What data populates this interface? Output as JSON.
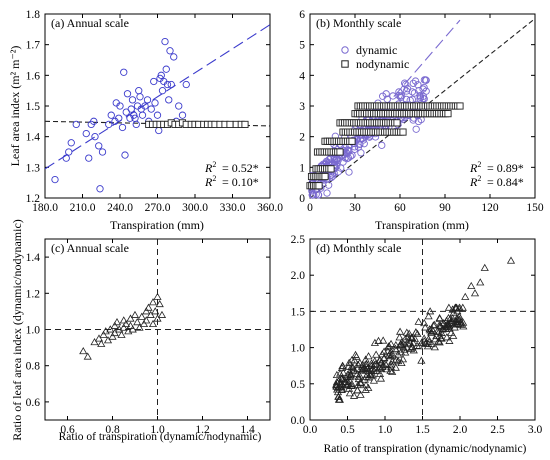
{
  "figure": {
    "left_ylabel_top": "Leaf area index (m² m⁻²)",
    "left_ylabel_bottom": "Ratio of leaf area index (dynamic/nodynamic)"
  },
  "chart_data": [
    {
      "type": "scatter",
      "title": "(a) Annual scale",
      "xlabel": "Transpiration (mm)",
      "ylabel": "Leaf area index (m² m⁻²)",
      "xlim": [
        180,
        360
      ],
      "ylim": [
        1.2,
        1.8
      ],
      "xticks": [
        180,
        210,
        240,
        270,
        300,
        330,
        360
      ],
      "yticks": [
        1.2,
        1.3,
        1.4,
        1.5,
        1.6,
        1.7,
        1.8
      ],
      "colors": {
        "dynamic": "#3b3bcc",
        "nodynamic": "#222222"
      },
      "series": [
        {
          "key": "dynamic",
          "marker": "circle",
          "points": [
            [
              188,
              1.26
            ],
            [
              197,
              1.33
            ],
            [
              199,
              1.35
            ],
            [
              201,
              1.38
            ],
            [
              205,
              1.44
            ],
            [
              213,
              1.41
            ],
            [
              215,
              1.33
            ],
            [
              217,
              1.44
            ],
            [
              219,
              1.45
            ],
            [
              220,
              1.4
            ],
            [
              223,
              1.37
            ],
            [
              224,
              1.23
            ],
            [
              226,
              1.35
            ],
            [
              231,
              1.44
            ],
            [
              233,
              1.47
            ],
            [
              236,
              1.45
            ],
            [
              237,
              1.51
            ],
            [
              239,
              1.46
            ],
            [
              240,
              1.5
            ],
            [
              242,
              1.43
            ],
            [
              243,
              1.61
            ],
            [
              244,
              1.34
            ],
            [
              245,
              1.48
            ],
            [
              246,
              1.54
            ],
            [
              248,
              1.46
            ],
            [
              249,
              1.49
            ],
            [
              250,
              1.52
            ],
            [
              251,
              1.47
            ],
            [
              252,
              1.46
            ],
            [
              253,
              1.44
            ],
            [
              254,
              1.5
            ],
            [
              255,
              1.55
            ],
            [
              256,
              1.53
            ],
            [
              257,
              1.49
            ],
            [
              258,
              1.47
            ],
            [
              260,
              1.5
            ],
            [
              262,
              1.52
            ],
            [
              263,
              1.45
            ],
            [
              265,
              1.49
            ],
            [
              267,
              1.58
            ],
            [
              268,
              1.51
            ],
            [
              269,
              1.44
            ],
            [
              270,
              1.47
            ],
            [
              271,
              1.42
            ],
            [
              272,
              1.59
            ],
            [
              273,
              1.6
            ],
            [
              274,
              1.55
            ],
            [
              275,
              1.58
            ],
            [
              276,
              1.71
            ],
            [
              277,
              1.62
            ],
            [
              278,
              1.57
            ],
            [
              279,
              1.52
            ],
            [
              280,
              1.68
            ],
            [
              281,
              1.57
            ],
            [
              283,
              1.66
            ],
            [
              285,
              1.45
            ],
            [
              287,
              1.5
            ],
            [
              290,
              1.47
            ],
            [
              293,
              1.57
            ]
          ]
        },
        {
          "key": "nodynamic",
          "marker": "square",
          "points": [
            [
              263,
              1.44
            ],
            [
              266,
              1.44
            ],
            [
              269,
              1.44
            ],
            [
              272,
              1.44
            ],
            [
              275,
              1.44
            ],
            [
              278,
              1.44
            ],
            [
              281,
              1.445
            ],
            [
              284,
              1.44
            ],
            [
              287,
              1.44
            ],
            [
              290,
              1.445
            ],
            [
              293,
              1.44
            ],
            [
              297,
              1.44
            ],
            [
              300,
              1.44
            ],
            [
              303,
              1.44
            ],
            [
              307,
              1.44
            ],
            [
              310,
              1.44
            ],
            [
              313,
              1.44
            ],
            [
              316,
              1.44
            ],
            [
              320,
              1.44
            ],
            [
              324,
              1.44
            ],
            [
              328,
              1.44
            ],
            [
              333,
              1.44
            ],
            [
              337,
              1.44
            ],
            [
              340,
              1.44
            ]
          ]
        }
      ],
      "fits": [
        {
          "key": "dynamic",
          "style": "long-dash",
          "from": [
            180,
            1.295
          ],
          "to": [
            360,
            1.765
          ]
        },
        {
          "key": "nodynamic",
          "style": "dash",
          "from": [
            180,
            1.45
          ],
          "to": [
            360,
            1.435
          ]
        }
      ],
      "annotations": [
        {
          "key": "dynamic",
          "r2": "= 0.52*"
        },
        {
          "key": "nodynamic",
          "r2": "= 0.10*"
        }
      ]
    },
    {
      "type": "scatter",
      "title": "(b) Monthly scale",
      "xlabel": "Transpiration (mm)",
      "xlim": [
        0,
        150
      ],
      "ylim": [
        0,
        6
      ],
      "xticks": [
        0,
        30,
        60,
        90,
        120,
        150
      ],
      "yticks": [
        0,
        1,
        2,
        3,
        4,
        5,
        6
      ],
      "colors": {
        "dynamic": "#7a6ad0",
        "nodynamic": "#222222"
      },
      "legend": [
        {
          "key": "dynamic",
          "marker": "circle",
          "label": "dynamic"
        },
        {
          "key": "nodynamic",
          "marker": "square",
          "label": "nodynamic"
        }
      ],
      "series": [
        {
          "key": "dynamic",
          "marker": "circle",
          "points": "generated: ~300 points rising from (0, 0.3) to about (80, 3.7)"
        },
        {
          "key": "nodynamic",
          "marker": "square",
          "points": "generated: step plateaus at 0.4, 0.7, 0.95, 1.5, 1.85, 2.15, 2.45, 2.75, 3.0"
        }
      ],
      "fits": [
        {
          "key": "dynamic",
          "style": "long-dash",
          "from": [
            0,
            0.15
          ],
          "to": [
            100,
            5.8
          ]
        },
        {
          "key": "nodynamic",
          "style": "dash",
          "from": [
            0,
            0.0
          ],
          "to": [
            150,
            5.85
          ]
        }
      ],
      "annotations": [
        {
          "key": "dynamic",
          "r2": "= 0.89*"
        },
        {
          "key": "nodynamic",
          "r2": "= 0.84*"
        }
      ]
    },
    {
      "type": "scatter",
      "title": "(c) Annual scale",
      "xlabel": "Ratio of transpiration  (dynamic/nodynamic)",
      "ylabel": "Ratio of leaf area index (dynamic/nodynamic)",
      "xlim": [
        0.5,
        1.5
      ],
      "ylim": [
        0.5,
        1.5
      ],
      "xticks": [
        0.6,
        0.8,
        1.0,
        1.2,
        1.4
      ],
      "yticks": [
        0.6,
        0.8,
        1.0,
        1.2,
        1.4
      ],
      "reference_lines": {
        "x": 1.0,
        "y": 1.0
      },
      "series": [
        {
          "marker": "triangle",
          "points": [
            [
              0.67,
              0.88
            ],
            [
              0.69,
              0.85
            ],
            [
              0.72,
              0.93
            ],
            [
              0.74,
              0.95
            ],
            [
              0.75,
              0.92
            ],
            [
              0.76,
              0.97
            ],
            [
              0.77,
              0.99
            ],
            [
              0.78,
              0.94
            ],
            [
              0.79,
              1.0
            ],
            [
              0.8,
              0.96
            ],
            [
              0.81,
              1.02
            ],
            [
              0.81,
              0.98
            ],
            [
              0.82,
              1.04
            ],
            [
              0.83,
              1.0
            ],
            [
              0.84,
              0.97
            ],
            [
              0.85,
              1.05
            ],
            [
              0.85,
              1.01
            ],
            [
              0.86,
              1.03
            ],
            [
              0.87,
              0.99
            ],
            [
              0.88,
              1.06
            ],
            [
              0.88,
              1.02
            ],
            [
              0.89,
              1.0
            ],
            [
              0.9,
              1.08
            ],
            [
              0.91,
              1.04
            ],
            [
              0.92,
              1.01
            ],
            [
              0.93,
              1.07
            ],
            [
              0.94,
              1.03
            ],
            [
              0.95,
              1.1
            ],
            [
              0.95,
              1.05
            ],
            [
              0.96,
              1.12
            ],
            [
              0.97,
              1.08
            ],
            [
              0.98,
              1.15
            ],
            [
              0.98,
              1.03
            ],
            [
              0.99,
              1.1
            ],
            [
              1.0,
              1.18
            ],
            [
              1.0,
              1.06
            ],
            [
              1.01,
              1.14
            ],
            [
              1.02,
              1.08
            ]
          ]
        }
      ]
    },
    {
      "type": "scatter",
      "title": "(d) Monthly scale",
      "xlabel": "Ratio of transpiration  (dynamic/nodynamic)",
      "xlim": [
        0.0,
        3.0
      ],
      "ylim": [
        0.0,
        2.5
      ],
      "xticks": [
        0.0,
        0.5,
        1.0,
        1.5,
        2.0,
        2.5,
        3.0
      ],
      "yticks": [
        0.0,
        0.5,
        1.0,
        1.5,
        2.0,
        2.5
      ],
      "reference_lines": {
        "x": 1.5,
        "y": 1.5
      },
      "series": [
        {
          "marker": "triangle",
          "points": "generated: ~280 points, cloud from (0.35, 0.3) to (2.0, 1.5), plus outliers (2.07,1.7),(2.15,1.85),(2.2,1.75),(2.27,1.9),(2.33,2.1),(2.68,2.2)"
        }
      ]
    }
  ]
}
